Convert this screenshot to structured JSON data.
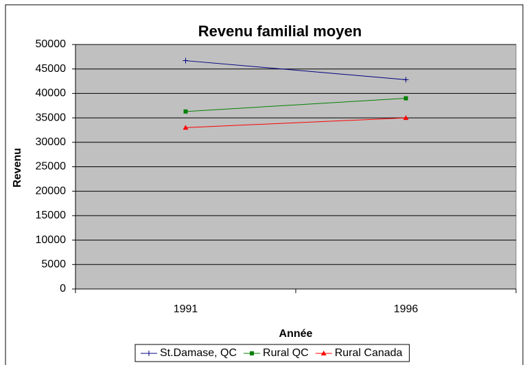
{
  "chart_data": {
    "type": "line",
    "title": "Revenu familial moyen",
    "x_label": "Année",
    "y_label": "Revenu",
    "categories": [
      "1991",
      "1996"
    ],
    "series": [
      {
        "name": "St.Damase, QC",
        "color": "#000080",
        "marker": "plus",
        "values": [
          46700,
          42800
        ]
      },
      {
        "name": "Rural QC",
        "color": "#008000",
        "marker": "square",
        "values": [
          36300,
          39000
        ]
      },
      {
        "name": "Rural Canada",
        "color": "#ff0000",
        "marker": "triangle",
        "values": [
          33000,
          35000
        ]
      }
    ],
    "ylim": [
      0,
      50000
    ],
    "yticks": [
      0,
      5000,
      10000,
      15000,
      20000,
      25000,
      30000,
      35000,
      40000,
      45000,
      50000
    ],
    "grid": true,
    "legend": "bottom"
  }
}
